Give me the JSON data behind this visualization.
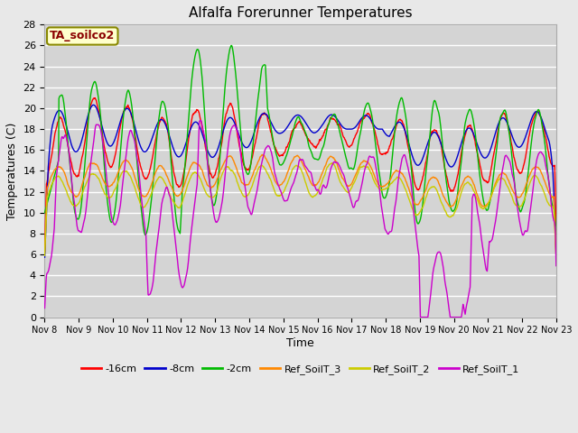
{
  "title": "Alfalfa Forerunner Temperatures",
  "xlabel": "Time",
  "ylabel": "Temperatures (C)",
  "ylim": [
    0,
    28
  ],
  "background_color": "#e8e8e8",
  "plot_bg_color": "#d4d4d4",
  "grid_color": "#ffffff",
  "annotation_text": "TA_soilco2",
  "annotation_bg": "#ffffcc",
  "annotation_fg": "#8b0000",
  "annotation_border": "#888800",
  "tick_labels": [
    "Nov 8",
    "Nov 9",
    "Nov 10",
    "Nov 11",
    "Nov 12",
    "Nov 13",
    "Nov 14",
    "Nov 15",
    "Nov 16",
    "Nov 17",
    "Nov 18",
    "Nov 19",
    "Nov 20",
    "Nov 21",
    "Nov 22",
    "Nov 23"
  ],
  "series": {
    "m16cm": {
      "label": "-16cm",
      "color": "#ff0000"
    },
    "m8cm": {
      "label": "-8cm",
      "color": "#0000cc"
    },
    "m2cm": {
      "label": "-2cm",
      "color": "#00bb00"
    },
    "ref3": {
      "label": "Ref_SoilT_3",
      "color": "#ff8800"
    },
    "ref2": {
      "label": "Ref_SoilT_2",
      "color": "#cccc00"
    },
    "ref1": {
      "label": "Ref_SoilT_1",
      "color": "#cc00cc"
    }
  }
}
